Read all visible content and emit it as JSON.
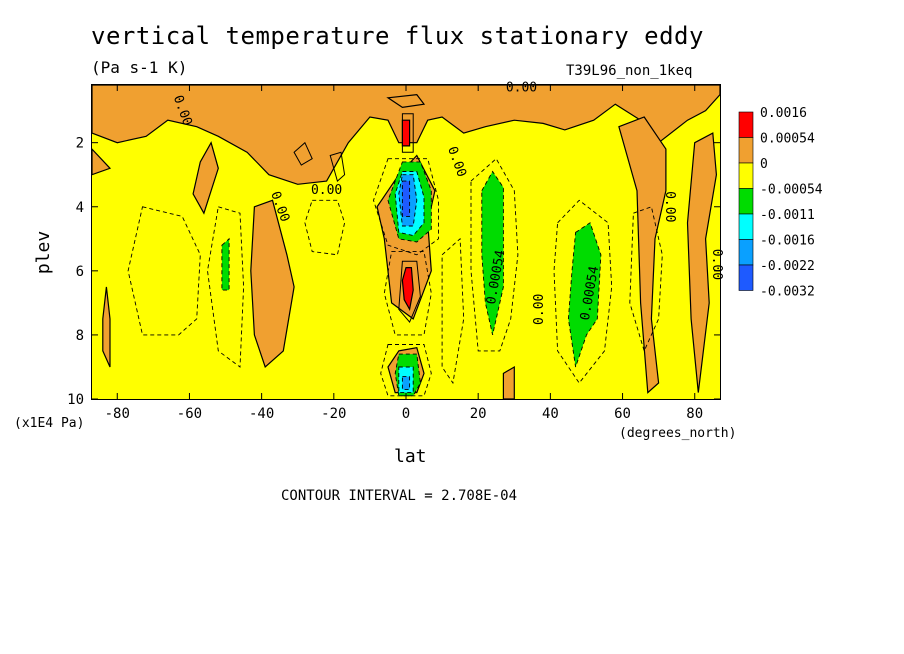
{
  "title": "vertical temperature flux stationary eddy",
  "units": "(Pa s-1 K)",
  "run_label": "T39L96_non_1keq",
  "contour_interval": "CONTOUR INTERVAL = 2.708E-04",
  "colors": {
    "red": "#ff0000",
    "orange": "#f0a030",
    "yellow": "#ffff00",
    "green": "#00dc00",
    "cyan": "#00ffff",
    "lightblue": "#0aa0ff",
    "blue": "#1e5aff"
  },
  "chart_data": {
    "type": "heatmap",
    "subtype": "filled contour",
    "xlabel": "lat",
    "xlabel_units": "(degrees_north)",
    "ylabel": "plev",
    "ylabel_units": "(x1E4 Pa)",
    "xlim": [
      -87,
      87
    ],
    "ylim": [
      10,
      0.2
    ],
    "xticks": [
      -80,
      -60,
      -40,
      -20,
      0,
      20,
      40,
      60,
      80
    ],
    "yticks": [
      2,
      4,
      6,
      8,
      10
    ],
    "legend": {
      "position": "right",
      "labels": [
        "0.0016",
        "0.00054",
        "0",
        "-0.00054",
        "-0.0011",
        "-0.0016",
        "-0.0022",
        "-0.0032"
      ],
      "colors": [
        "#ff0000",
        "#f0a030",
        "#ffff00",
        "#00dc00",
        "#00ffff",
        "#0aa0ff",
        "#1e5aff"
      ]
    },
    "contour_labels": [
      {
        "text": "0.00",
        "lat": -62,
        "plev": 1.0,
        "rotate": 70
      },
      {
        "text": "0.00",
        "lat": 32,
        "plev": 0.3,
        "rotate": 0
      },
      {
        "text": "0.00",
        "lat": 14,
        "plev": 2.6,
        "rotate": 70
      },
      {
        "text": "0.00",
        "lat": -22,
        "plev": 3.5,
        "rotate": 0
      },
      {
        "text": "0.00",
        "lat": -35,
        "plev": 4.0,
        "rotate": 70
      },
      {
        "text": "0.00054",
        "lat": 25,
        "plev": 6.2,
        "rotate": -80
      },
      {
        "text": "0.00",
        "lat": 37,
        "plev": 7.2,
        "rotate": -90
      },
      {
        "text": "0.00054",
        "lat": 51,
        "plev": 6.7,
        "rotate": -80
      },
      {
        "text": "0.00",
        "lat": 73,
        "plev": 4.0,
        "rotate": 90
      },
      {
        "text": "0.00",
        "lat": 86,
        "plev": 5.8,
        "rotate": 90
      }
    ],
    "regions": [
      {
        "level": "orange",
        "pts": [
          [
            -87,
            0.2
          ],
          [
            87,
            0.2
          ],
          [
            87,
            0.5
          ],
          [
            83,
            1.0
          ],
          [
            78,
            1.3
          ],
          [
            70,
            2.0
          ],
          [
            65,
            1.3
          ],
          [
            58,
            0.8
          ],
          [
            52,
            1.3
          ],
          [
            44,
            1.6
          ],
          [
            38,
            1.4
          ],
          [
            30,
            1.3
          ],
          [
            22,
            1.5
          ],
          [
            16,
            1.7
          ],
          [
            10,
            1.2
          ],
          [
            6,
            1.3
          ],
          [
            3,
            2.0
          ],
          [
            -2,
            2.0
          ],
          [
            -5,
            1.3
          ],
          [
            -10,
            1.2
          ],
          [
            -16,
            2.0
          ],
          [
            -22,
            3.2
          ],
          [
            -30,
            3.3
          ],
          [
            -38,
            3.0
          ],
          [
            -44,
            2.3
          ],
          [
            -52,
            1.8
          ],
          [
            -58,
            1.5
          ],
          [
            -66,
            1.3
          ],
          [
            -72,
            1.8
          ],
          [
            -80,
            2.0
          ],
          [
            -87,
            1.7
          ]
        ]
      },
      {
        "level": "orange",
        "pts": [
          [
            -87,
            2.2
          ],
          [
            -82,
            2.8
          ],
          [
            -87,
            3.0
          ]
        ]
      },
      {
        "level": "orange",
        "pts": [
          [
            -57,
            2.6
          ],
          [
            -54,
            2.0
          ],
          [
            -52,
            2.8
          ],
          [
            -56,
            4.2
          ],
          [
            -59,
            3.6
          ]
        ]
      },
      {
        "level": "orange",
        "pts": [
          [
            -42,
            4.0
          ],
          [
            -37,
            3.8
          ],
          [
            -33,
            5.5
          ],
          [
            -31,
            6.5
          ],
          [
            -34,
            8.5
          ],
          [
            -39,
            9.0
          ],
          [
            -42,
            8.0
          ],
          [
            -43,
            6.0
          ]
        ]
      },
      {
        "level": "orange",
        "pts": [
          [
            -83,
            6.5
          ],
          [
            -82,
            7.5
          ],
          [
            -82,
            9.0
          ],
          [
            -84,
            8.5
          ],
          [
            -84,
            7.5
          ]
        ]
      },
      {
        "level": "orange",
        "pts": [
          [
            59,
            1.5
          ],
          [
            66,
            1.2
          ],
          [
            72,
            2.2
          ],
          [
            72,
            3.5
          ],
          [
            69,
            5.0
          ],
          [
            68,
            7.5
          ],
          [
            70,
            9.5
          ],
          [
            67,
            9.8
          ],
          [
            65,
            7.0
          ],
          [
            64,
            3.5
          ]
        ]
      },
      {
        "level": "orange",
        "pts": [
          [
            80,
            2.0
          ],
          [
            85,
            1.7
          ],
          [
            86,
            3.0
          ],
          [
            83,
            5.0
          ],
          [
            84,
            7.0
          ],
          [
            81,
            9.8
          ],
          [
            79,
            7.5
          ],
          [
            78,
            4.5
          ]
        ]
      },
      {
        "level": "orange",
        "pts": [
          [
            -2,
            3.0
          ],
          [
            3,
            2.4
          ],
          [
            8,
            3.5
          ],
          [
            6,
            4.5
          ],
          [
            7,
            6.0
          ],
          [
            2,
            7.5
          ],
          [
            -4,
            7.0
          ],
          [
            -6,
            5.0
          ],
          [
            -8,
            4.0
          ]
        ]
      },
      {
        "level": "orange",
        "pts": [
          [
            -2,
            8.5
          ],
          [
            3,
            8.4
          ],
          [
            5,
            9.2
          ],
          [
            3,
            9.8
          ],
          [
            -3,
            9.8
          ],
          [
            -5,
            9.0
          ]
        ]
      },
      {
        "level": "orange",
        "pts": [
          [
            27,
            9.2
          ],
          [
            30,
            9.0
          ],
          [
            30,
            10
          ],
          [
            27,
            10
          ]
        ]
      },
      {
        "level": "orange",
        "pts": [
          [
            -5,
            0.6
          ],
          [
            3,
            0.5
          ],
          [
            5,
            0.8
          ],
          [
            -1,
            0.9
          ]
        ]
      },
      {
        "level": "green",
        "pts": [
          [
            -1,
            2.6
          ],
          [
            4,
            2.6
          ],
          [
            7,
            3.5
          ],
          [
            7,
            4.7
          ],
          [
            3,
            5.1
          ],
          [
            -2,
            5.0
          ],
          [
            -5,
            3.8
          ]
        ]
      },
      {
        "level": "green",
        "pts": [
          [
            -2,
            8.6
          ],
          [
            3,
            8.6
          ],
          [
            4,
            9.5
          ],
          [
            2,
            9.9
          ],
          [
            -2,
            9.9
          ],
          [
            -3,
            9.2
          ]
        ]
      },
      {
        "level": "green",
        "pts": [
          [
            21,
            3.5
          ],
          [
            24,
            2.9
          ],
          [
            27,
            3.4
          ],
          [
            27,
            4.5
          ],
          [
            27,
            6.5
          ],
          [
            24,
            8.0
          ],
          [
            22,
            7.0
          ],
          [
            21,
            5.5
          ]
        ]
      },
      {
        "level": "green",
        "pts": [
          [
            47,
            4.8
          ],
          [
            51,
            4.5
          ],
          [
            54,
            5.5
          ],
          [
            53,
            7.5
          ],
          [
            50,
            8.0
          ],
          [
            47,
            9.0
          ],
          [
            45,
            7.5
          ],
          [
            46,
            6.0
          ]
        ]
      },
      {
        "level": "green",
        "pts": [
          [
            -51,
            5.2
          ],
          [
            -49,
            5.0
          ],
          [
            -49,
            6.6
          ],
          [
            -51,
            6.6
          ]
        ]
      },
      {
        "level": "cyan",
        "pts": [
          [
            -1,
            2.9
          ],
          [
            3,
            2.9
          ],
          [
            5,
            3.7
          ],
          [
            5,
            4.5
          ],
          [
            2,
            4.9
          ],
          [
            -2,
            4.8
          ],
          [
            -3,
            3.6
          ]
        ]
      },
      {
        "level": "cyan",
        "pts": [
          [
            -2,
            9.0
          ],
          [
            2,
            9.0
          ],
          [
            2,
            9.8
          ],
          [
            -2,
            9.8
          ]
        ]
      },
      {
        "level": "lightblue",
        "pts": [
          [
            -1,
            3.0
          ],
          [
            2,
            3.0
          ],
          [
            3,
            3.8
          ],
          [
            2,
            4.6
          ],
          [
            -1,
            4.6
          ],
          [
            -2,
            3.6
          ]
        ]
      },
      {
        "level": "lightblue",
        "pts": [
          [
            -1,
            9.3
          ],
          [
            1,
            9.3
          ],
          [
            1,
            9.7
          ],
          [
            -1,
            9.7
          ]
        ]
      },
      {
        "level": "blue",
        "pts": [
          [
            -1,
            3.2
          ],
          [
            1,
            3.2
          ],
          [
            1,
            4.3
          ],
          [
            -1,
            4.3
          ]
        ]
      },
      {
        "level": "red",
        "pts": [
          [
            0,
            5.9
          ],
          [
            1.5,
            5.9
          ],
          [
            2,
            6.6
          ],
          [
            1,
            7.2
          ],
          [
            -0.5,
            6.9
          ],
          [
            -1,
            6.3
          ]
        ]
      },
      {
        "level": "red",
        "pts": [
          [
            -1,
            1.3
          ],
          [
            1,
            1.3
          ],
          [
            1,
            2.1
          ],
          [
            -1,
            2.1
          ]
        ]
      }
    ],
    "solid_contours": [
      [
        [
          -31,
          2.3
        ],
        [
          -28,
          2.0
        ],
        [
          -26,
          2.5
        ],
        [
          -29,
          2.7
        ]
      ],
      [
        [
          -21,
          2.4
        ],
        [
          -18,
          2.3
        ],
        [
          -17,
          3.0
        ],
        [
          -19,
          3.2
        ]
      ],
      [
        [
          -1,
          5.7
        ],
        [
          3,
          5.7
        ],
        [
          4,
          6.8
        ],
        [
          1,
          7.6
        ],
        [
          -2,
          7.2
        ]
      ],
      [
        [
          -1,
          1.1
        ],
        [
          2,
          1.1
        ],
        [
          2,
          2.3
        ],
        [
          -1,
          2.3
        ]
      ]
    ],
    "dashed_contours": [
      [
        [
          -73,
          4.0
        ],
        [
          -62,
          4.3
        ],
        [
          -57,
          5.5
        ],
        [
          -58,
          7.5
        ],
        [
          -63,
          8.0
        ],
        [
          -73,
          8.0
        ],
        [
          -77,
          6.0
        ]
      ],
      [
        [
          -52,
          4.0
        ],
        [
          -46,
          4.2
        ],
        [
          -45,
          6.5
        ],
        [
          -46,
          9.0
        ],
        [
          -52,
          8.5
        ],
        [
          -55,
          6.0
        ]
      ],
      [
        [
          -26,
          3.8
        ],
        [
          -19,
          3.8
        ],
        [
          -17,
          4.5
        ],
        [
          -19,
          5.5
        ],
        [
          -26,
          5.4
        ],
        [
          -28,
          4.5
        ]
      ],
      [
        [
          -5,
          2.5
        ],
        [
          6,
          2.5
        ],
        [
          9,
          3.8
        ],
        [
          9,
          5.0
        ],
        [
          3,
          5.5
        ],
        [
          -5,
          5.2
        ],
        [
          -9,
          3.8
        ]
      ],
      [
        [
          -5,
          8.3
        ],
        [
          5,
          8.3
        ],
        [
          7,
          9.2
        ],
        [
          5,
          9.9
        ],
        [
          -5,
          9.9
        ],
        [
          -7,
          9.2
        ]
      ],
      [
        [
          -4,
          5.4
        ],
        [
          5,
          5.4
        ],
        [
          7,
          6.7
        ],
        [
          5,
          8.0
        ],
        [
          -3,
          8.0
        ],
        [
          -6,
          6.7
        ]
      ],
      [
        [
          18,
          3.2
        ],
        [
          25,
          2.5
        ],
        [
          30,
          3.5
        ],
        [
          31,
          5.5
        ],
        [
          29,
          7.5
        ],
        [
          26,
          8.5
        ],
        [
          20,
          8.5
        ],
        [
          18,
          6.0
        ]
      ],
      [
        [
          42,
          4.5
        ],
        [
          48,
          3.8
        ],
        [
          56,
          4.5
        ],
        [
          57,
          6.5
        ],
        [
          55,
          8.5
        ],
        [
          48,
          9.5
        ],
        [
          42,
          8.5
        ],
        [
          41,
          6.0
        ]
      ],
      [
        [
          63,
          4.2
        ],
        [
          68,
          4.0
        ],
        [
          71,
          5.5
        ],
        [
          70,
          7.5
        ],
        [
          66,
          8.5
        ],
        [
          62,
          7.0
        ]
      ],
      [
        [
          10,
          5.5
        ],
        [
          15,
          5.0
        ],
        [
          16,
          7.5
        ],
        [
          13,
          9.5
        ],
        [
          10,
          9.0
        ]
      ]
    ]
  }
}
